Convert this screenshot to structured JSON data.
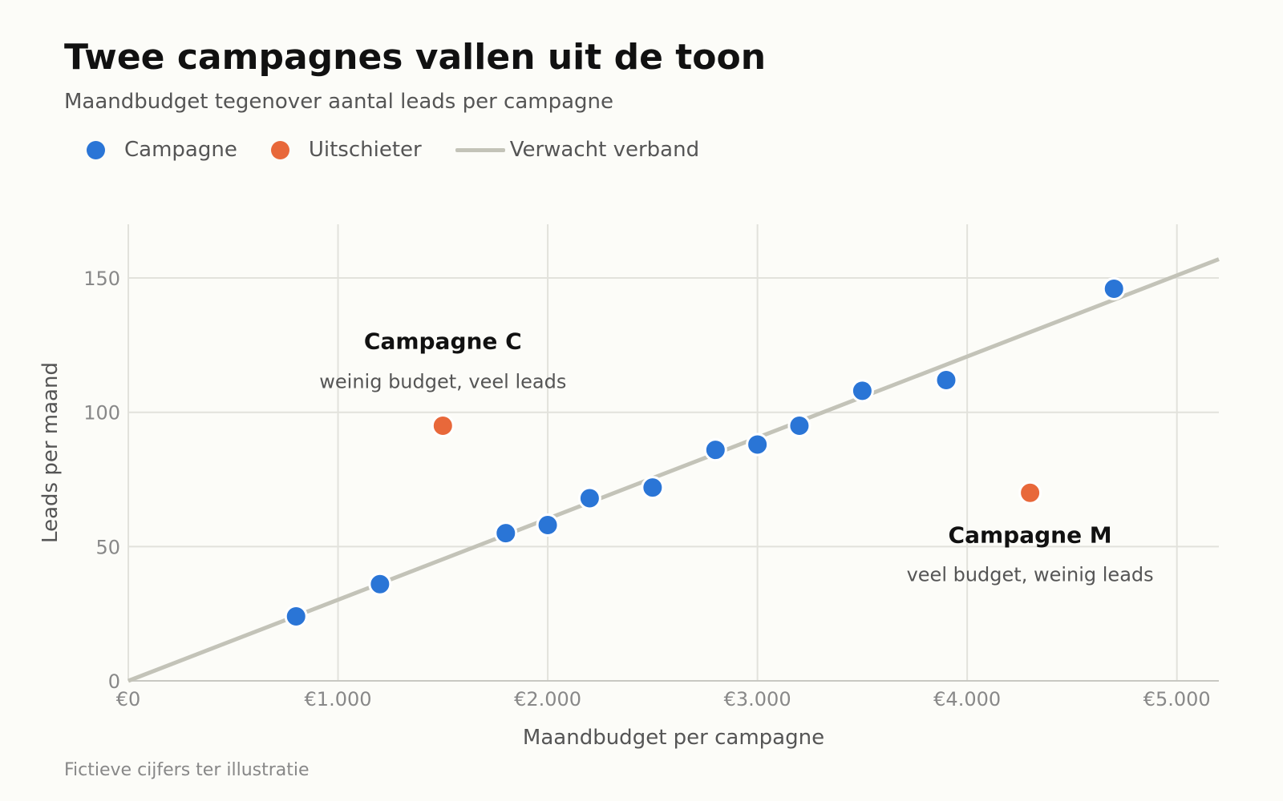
{
  "title": "Twee campagnes vallen uit de toon",
  "subtitle": "Maandbudget tegenover aantal leads per campagne",
  "legend": [
    {
      "label": "Campagne",
      "kind": "dot",
      "color": "#2a75d6"
    },
    {
      "label": "Uitschieter",
      "kind": "dot",
      "color": "#e8683a"
    },
    {
      "label": "Verwacht verband",
      "kind": "line",
      "color": "#c3c3b8"
    }
  ],
  "footnote": "Fictieve cijfers ter illustratie",
  "chart_data": {
    "type": "scatter",
    "xlabel": "Maandbudget per campagne",
    "ylabel": "Leads per maand",
    "xlim": [
      0,
      5200
    ],
    "ylim": [
      0,
      170
    ],
    "grid": true,
    "legend_position": "top-left",
    "x_ticks": [
      {
        "value": 0,
        "label": "€0"
      },
      {
        "value": 1000,
        "label": "€1.000"
      },
      {
        "value": 2000,
        "label": "€2.000"
      },
      {
        "value": 3000,
        "label": "€3.000"
      },
      {
        "value": 4000,
        "label": "€4.000"
      },
      {
        "value": 5000,
        "label": "€5.000"
      }
    ],
    "y_ticks": [
      {
        "value": 0,
        "label": "0"
      },
      {
        "value": 50,
        "label": "50"
      },
      {
        "value": 100,
        "label": "100"
      },
      {
        "value": 150,
        "label": "150"
      }
    ],
    "trend_line": {
      "name": "Verwacht verband",
      "color": "#c3c3b8",
      "points": [
        [
          0,
          0
        ],
        [
          5200,
          157
        ]
      ]
    },
    "series": [
      {
        "name": "Campagne",
        "color": "#2a75d6",
        "points": [
          {
            "x": 800,
            "y": 24
          },
          {
            "x": 1200,
            "y": 36
          },
          {
            "x": 1800,
            "y": 55
          },
          {
            "x": 2000,
            "y": 58
          },
          {
            "x": 2200,
            "y": 68
          },
          {
            "x": 2500,
            "y": 72
          },
          {
            "x": 2800,
            "y": 86
          },
          {
            "x": 3000,
            "y": 88
          },
          {
            "x": 3200,
            "y": 95
          },
          {
            "x": 3500,
            "y": 108
          },
          {
            "x": 3900,
            "y": 112
          },
          {
            "x": 4700,
            "y": 146
          }
        ]
      },
      {
        "name": "Uitschieter",
        "color": "#e8683a",
        "points": [
          {
            "x": 1500,
            "y": 95
          },
          {
            "x": 4300,
            "y": 70
          }
        ]
      }
    ],
    "annotations": [
      {
        "target": "Campagne C",
        "title": "Campagne C",
        "text": "weinig budget, veel leads",
        "x": 1500,
        "y": 95,
        "placement": "above"
      },
      {
        "target": "Campagne M",
        "title": "Campagne M",
        "text": "veel budget, weinig leads",
        "x": 4300,
        "y": 70,
        "placement": "below"
      }
    ]
  }
}
